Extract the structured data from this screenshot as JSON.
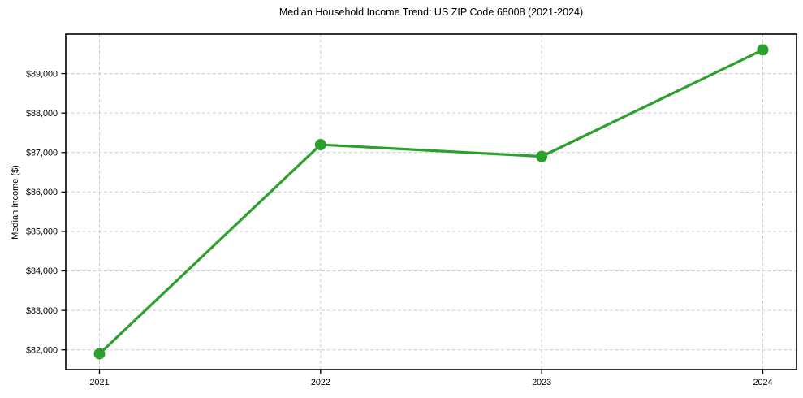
{
  "chart_data": {
    "type": "line",
    "title": "Median Household Income Trend: US ZIP Code 68008 (2021-2024)",
    "xlabel": "",
    "ylabel": "Median Income ($)",
    "categories": [
      "2021",
      "2022",
      "2023",
      "2024"
    ],
    "series": [
      {
        "name": "Median Household Income",
        "values": [
          81900,
          87200,
          86900,
          89600
        ]
      }
    ],
    "ylim": [
      81500,
      90000
    ],
    "ytick_values": [
      82000,
      83000,
      84000,
      85000,
      86000,
      87000,
      88000,
      89000
    ],
    "ytick_labels": [
      "$82,000",
      "$83,000",
      "$84,000",
      "$85,000",
      "$86,000",
      "$87,000",
      "$88,000",
      "$89,000"
    ],
    "grid": true,
    "grid_style": "dashed",
    "legend": "none",
    "colors": {
      "line": "#2ca02c",
      "marker": "#2ca02c",
      "grid": "#cccccc",
      "axis": "#000000",
      "background": "#ffffff"
    }
  }
}
